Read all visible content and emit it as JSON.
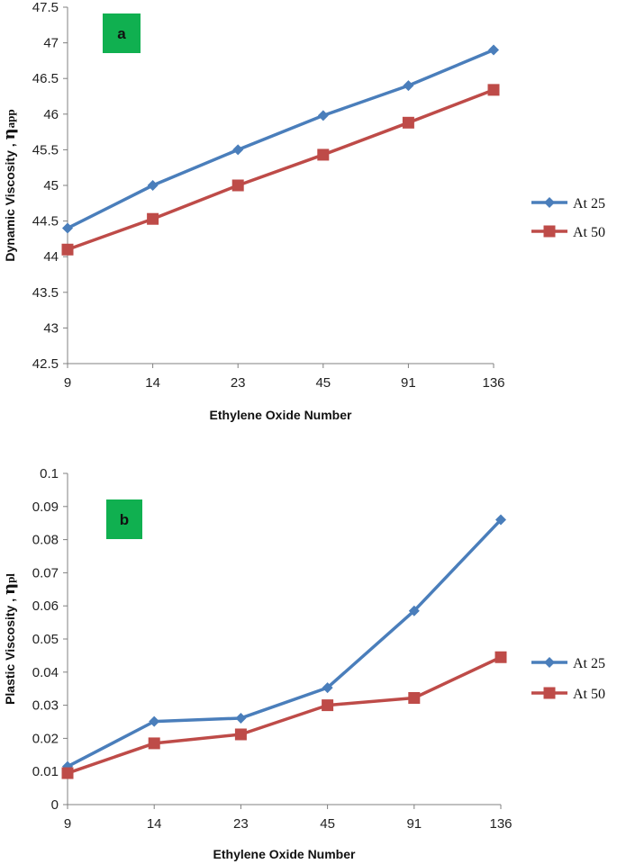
{
  "chart_data": [
    {
      "type": "line",
      "panel_label": "a",
      "categories": [
        "9",
        "14",
        "23",
        "45",
        "91",
        "136"
      ],
      "xlabel": "Ethylene Oxide Number",
      "ylabel_text": "Dynamic Viscosity , ",
      "ylabel_symbol": "η",
      "ylabel_sub": "app",
      "ylim": [
        42.5,
        47.5
      ],
      "ytick_step": 0.5,
      "ytick_labels": [
        "42.5",
        "43",
        "43.5",
        "44",
        "44.5",
        "45",
        "45.5",
        "46",
        "46.5",
        "47",
        "47.5"
      ],
      "grid": false,
      "legend_position": "right",
      "series": [
        {
          "name": "At 25",
          "color": "#4a7ebb",
          "marker": "diamond",
          "values": [
            44.4,
            45.0,
            45.5,
            45.98,
            46.4,
            46.9
          ]
        },
        {
          "name": "At 50",
          "color": "#be4b48",
          "marker": "square",
          "values": [
            44.1,
            44.53,
            45.0,
            45.43,
            45.88,
            46.34
          ]
        }
      ]
    },
    {
      "type": "line",
      "panel_label": "b",
      "categories": [
        "9",
        "14",
        "23",
        "45",
        "91",
        "136"
      ],
      "xlabel": "Ethylene Oxide Number",
      "ylabel_text": "Plastic Viscosity , ",
      "ylabel_symbol": "η",
      "ylabel_sub": "pl",
      "ylim": [
        0,
        0.1
      ],
      "ytick_step": 0.01,
      "ytick_labels": [
        "0",
        "0.01",
        "0.02",
        "0.03",
        "0.04",
        "0.05",
        "0.06",
        "0.07",
        "0.08",
        "0.09",
        "0.1"
      ],
      "grid": false,
      "legend_position": "right",
      "series": [
        {
          "name": "At 25",
          "color": "#4a7ebb",
          "marker": "diamond",
          "values": [
            0.0115,
            0.0251,
            0.0261,
            0.0353,
            0.0585,
            0.086
          ]
        },
        {
          "name": "At 50",
          "color": "#be4b48",
          "marker": "square",
          "values": [
            0.0095,
            0.0185,
            0.0212,
            0.03,
            0.0322,
            0.0445
          ]
        }
      ]
    }
  ],
  "colors": {
    "badge_green": "#10b050",
    "axis": "#808080"
  }
}
